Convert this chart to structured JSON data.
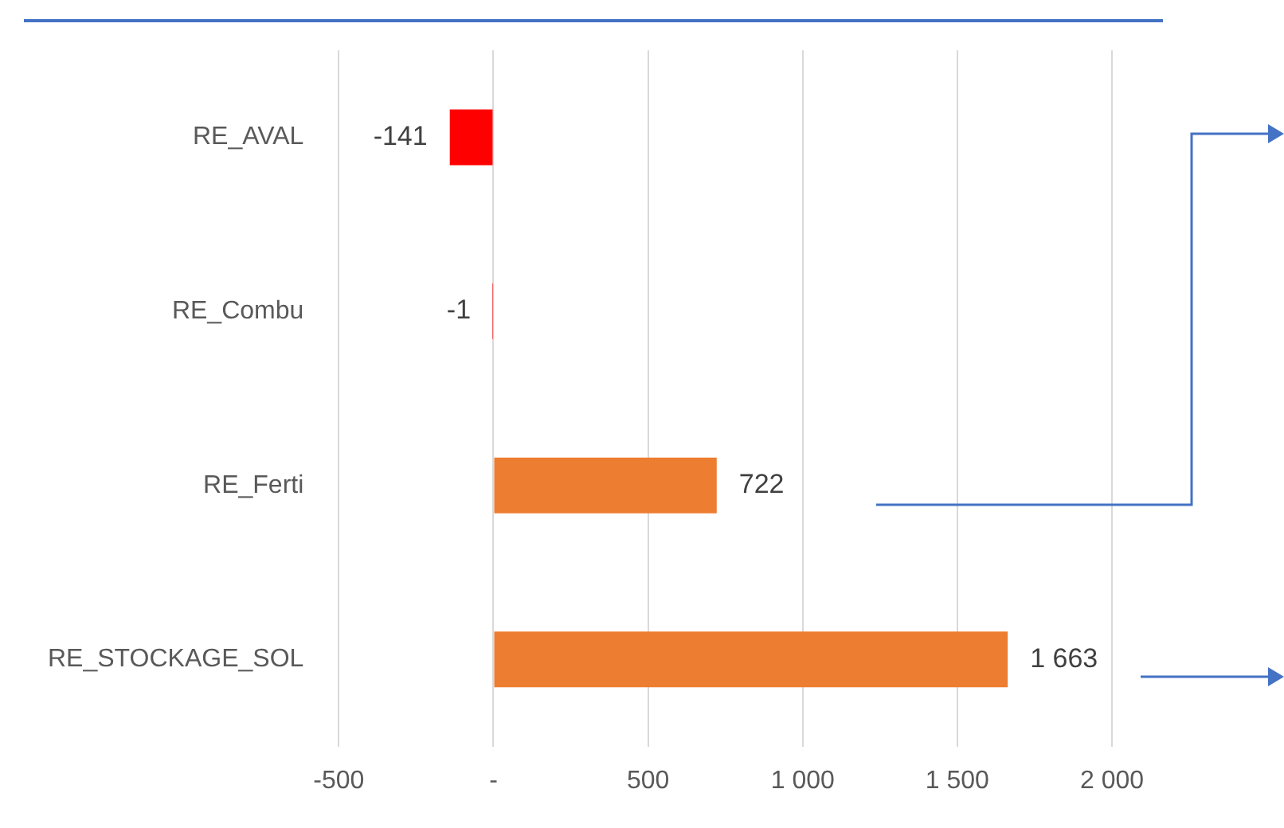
{
  "chart_data": {
    "type": "bar",
    "orientation": "horizontal",
    "categories": [
      "RE_AVAL",
      "RE_Combu",
      "RE_Ferti",
      "RE_STOCKAGE_SOL"
    ],
    "values": [
      -141,
      -1,
      722,
      1663
    ],
    "colors": [
      "#ff0000",
      "#ff0000",
      "#ed7d31",
      "#ed7d31"
    ],
    "value_labels": [
      "-141",
      "-1",
      "722",
      "1 663"
    ],
    "xlim": [
      -500,
      2000
    ],
    "xticks": [
      -500,
      {
        "value": 0,
        "label": "-"
      },
      500,
      {
        "value": 1000,
        "label": "1 000"
      },
      {
        "value": 1500,
        "label": "1 500"
      },
      {
        "value": 2000,
        "label": "2 000"
      }
    ],
    "grid": "x",
    "legend": false
  }
}
